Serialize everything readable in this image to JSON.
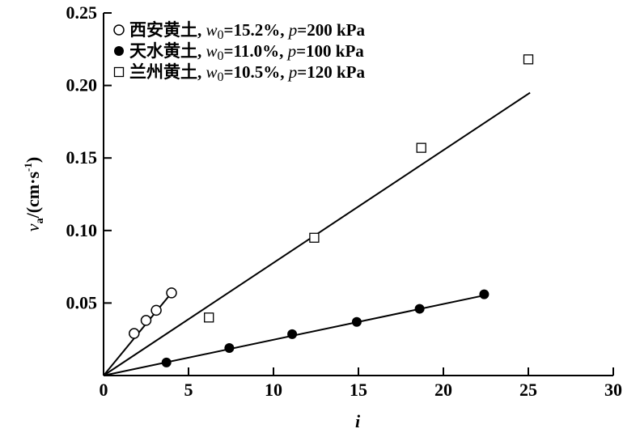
{
  "chart_data": {
    "type": "scatter",
    "title": "",
    "xlabel": "i",
    "ylabel": "v_a/(cm·s^-1)",
    "ylabel_parts": {
      "v": "v",
      "sub": "a",
      "unit": "/(cm·s",
      "sup": "-1",
      "close": ")"
    },
    "xlim": [
      0,
      30
    ],
    "ylim": [
      0,
      0.25
    ],
    "xticks": [
      "0",
      "5",
      "10",
      "15",
      "20",
      "25",
      "30"
    ],
    "yticks": [
      "0.05",
      "0.10",
      "0.15",
      "0.20",
      "0.25"
    ],
    "grid": false,
    "legend_position": "top-left",
    "series": [
      {
        "name": "西安黄土, w0=15.2%, p=200 kPa",
        "site": "西安黄土",
        "w0": "15.2%",
        "p": "200 kPa",
        "marker": "open-circle",
        "x": [
          1.8,
          2.5,
          3.1,
          4.0
        ],
        "y": [
          0.029,
          0.038,
          0.045,
          0.057
        ],
        "fit": {
          "x": [
            0,
            4.0
          ],
          "y": [
            0,
            0.057
          ]
        }
      },
      {
        "name": "天水黄土, w0=11.0%, p=100 kPa",
        "site": "天水黄土",
        "w0": "11.0%",
        "p": "100 kPa",
        "marker": "filled-circle",
        "x": [
          3.7,
          7.4,
          11.1,
          14.9,
          18.6,
          22.4
        ],
        "y": [
          0.009,
          0.019,
          0.0285,
          0.037,
          0.046,
          0.056
        ],
        "fit": {
          "x": [
            0,
            22.5
          ],
          "y": [
            0,
            0.0555
          ]
        }
      },
      {
        "name": "兰州黄土, w0=10.5%, p=120 kPa",
        "site": "兰州黄土",
        "w0": "10.5%",
        "p": "120 kPa",
        "marker": "open-square",
        "x": [
          6.2,
          12.4,
          18.7,
          25.0
        ],
        "y": [
          0.04,
          0.095,
          0.157,
          0.218
        ],
        "fit": {
          "x": [
            0,
            25.1
          ],
          "y": [
            0,
            0.195
          ]
        }
      }
    ]
  }
}
